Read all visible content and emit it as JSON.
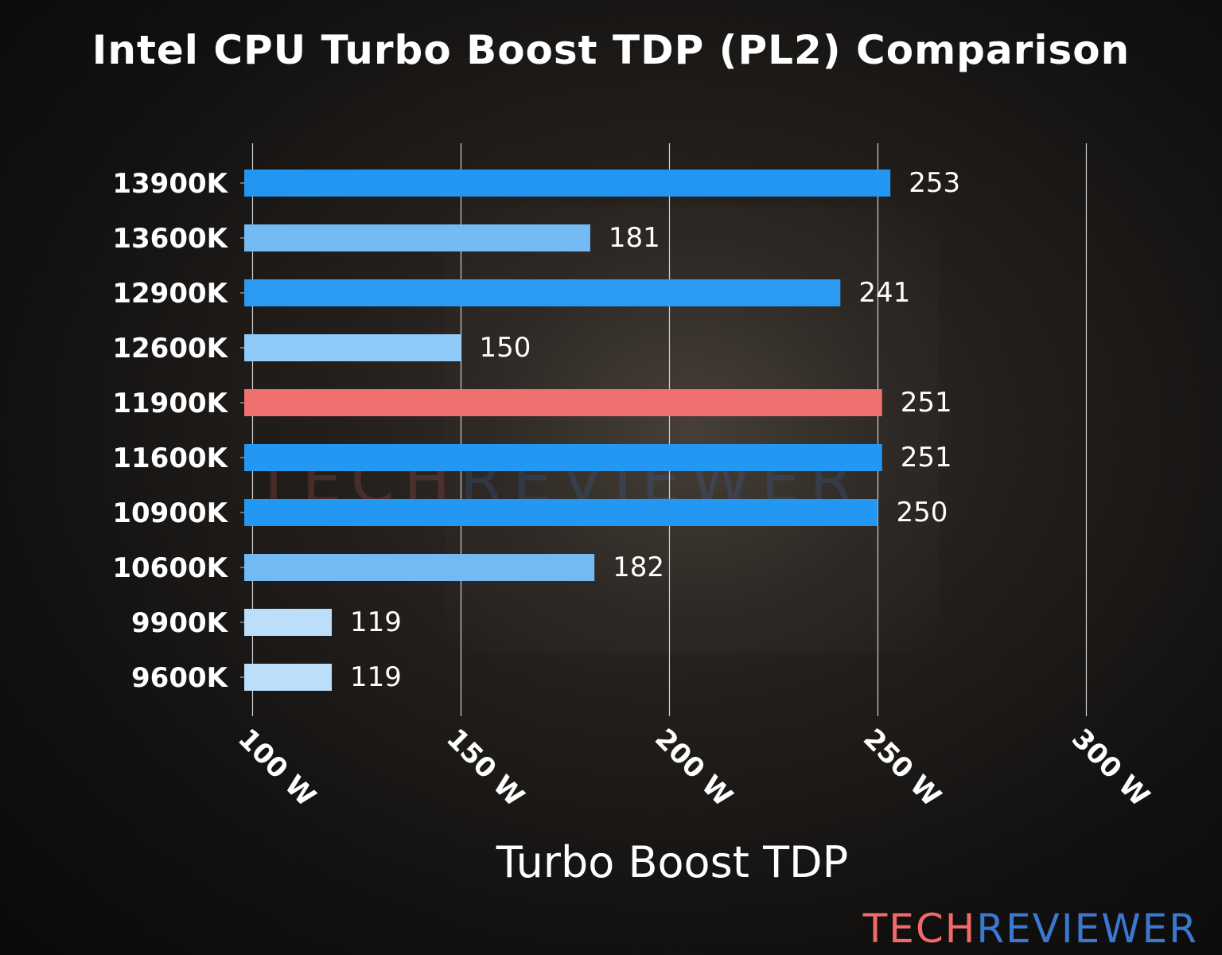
{
  "chart_data": {
    "type": "bar",
    "orientation": "horizontal",
    "title": "Intel CPU Turbo Boost TDP (PL2) Comparison",
    "xlabel": "Turbo Boost TDP",
    "ylabel": "",
    "categories": [
      "13900K",
      "13600K",
      "12900K",
      "12600K",
      "11900K",
      "11600K",
      "10900K",
      "10600K",
      "9900K",
      "9600K"
    ],
    "values": [
      253,
      181,
      241,
      150,
      251,
      251,
      250,
      182,
      119,
      119
    ],
    "colors": [
      "#2196F3",
      "#74BBF5",
      "#2A9AF2",
      "#90CAF9",
      "#F07070",
      "#2298F3",
      "#2398F3",
      "#73BAF5",
      "#BBDEFB",
      "#BBDEFB"
    ],
    "xticks": [
      100,
      150,
      200,
      250,
      300
    ],
    "xtick_labels": [
      "100 W",
      "150 W",
      "200 W",
      "250 W",
      "300 W"
    ],
    "xlim": [
      98,
      305
    ],
    "grid": "vertical",
    "data_labels": true
  },
  "watermark": {
    "part1": "TECH",
    "part2": "REVIEWER"
  },
  "logo": {
    "part1": "TECH",
    "part2": "REVIEWER",
    "color1": "#F06A6A",
    "color2": "#3B78D0"
  }
}
